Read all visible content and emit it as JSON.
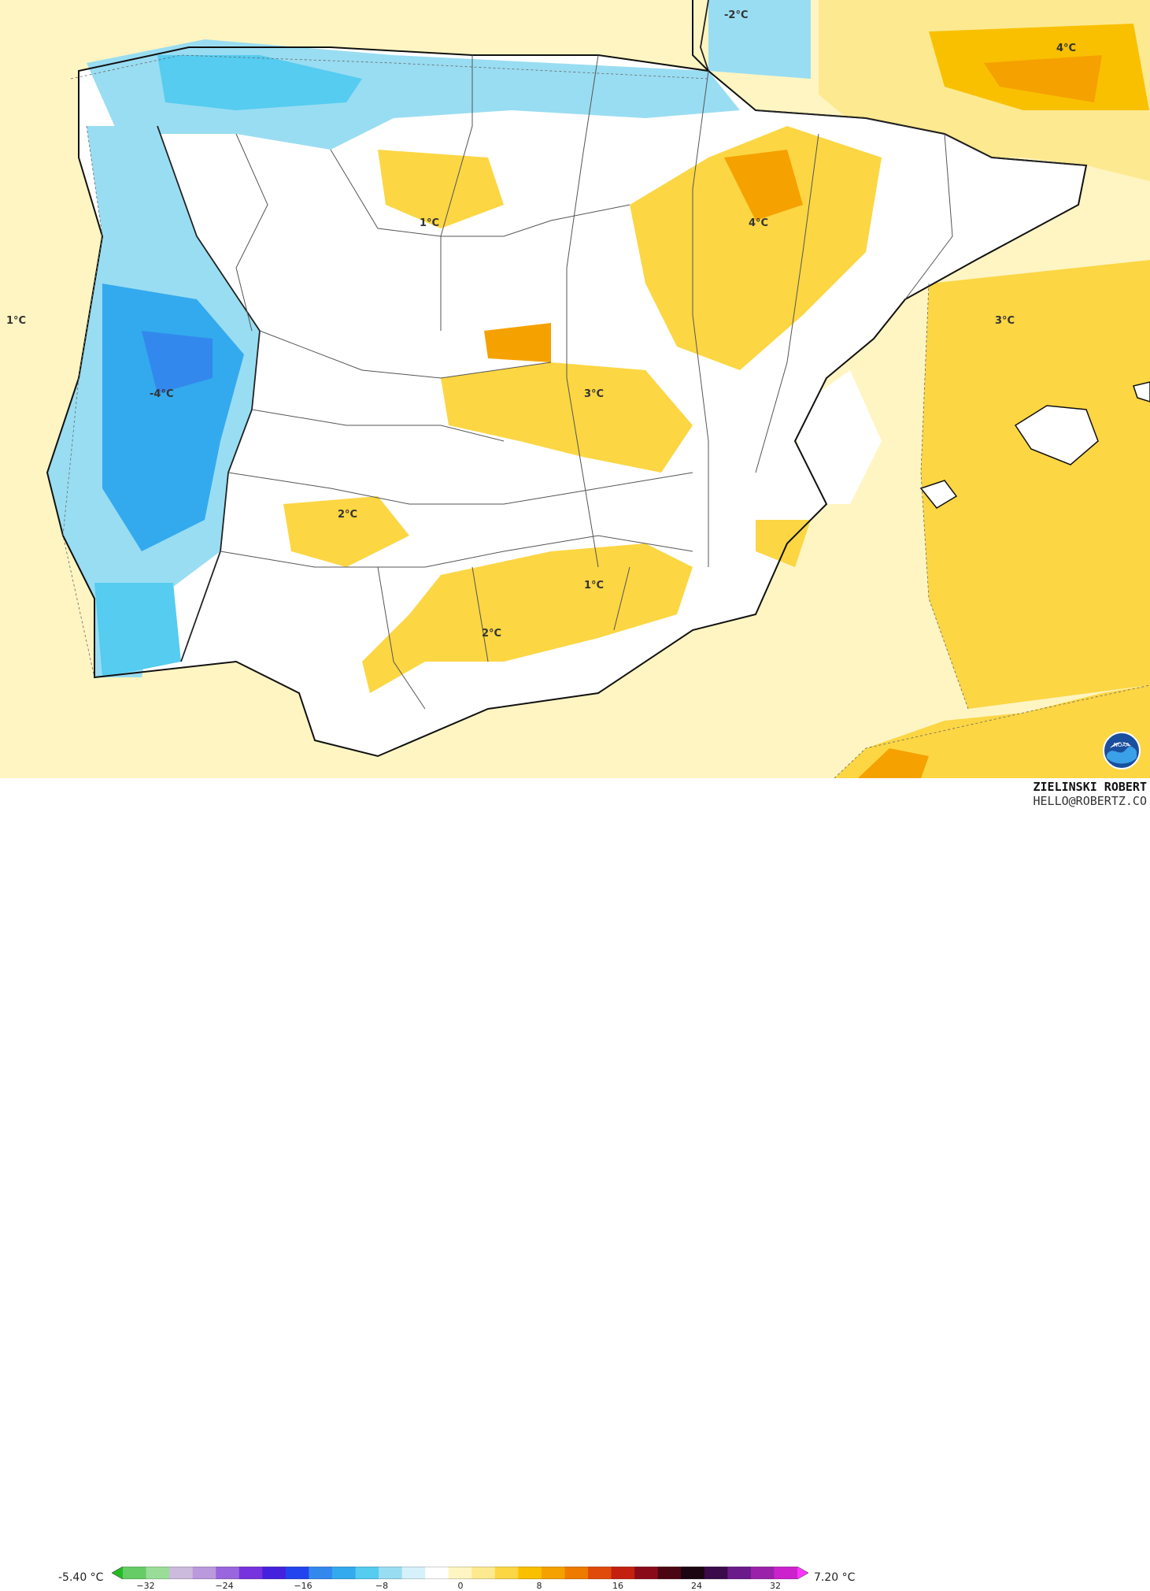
{
  "map": {
    "labels": [
      {
        "id": "lbl-minus2-north",
        "text": "-2°C"
      },
      {
        "id": "lbl-4-france",
        "text": "4°C"
      },
      {
        "id": "lbl-1-castilla",
        "text": "1°C"
      },
      {
        "id": "lbl-4-aragon",
        "text": "4°C"
      },
      {
        "id": "lbl-1-atlantic",
        "text": "1°C"
      },
      {
        "id": "lbl-3-mediterranean",
        "text": "3°C"
      },
      {
        "id": "lbl-minus4-portugal",
        "text": "-4°C"
      },
      {
        "id": "lbl-3-center",
        "text": "3°C"
      },
      {
        "id": "lbl-2-extremadura",
        "text": "2°C"
      },
      {
        "id": "lbl-1-andalusia",
        "text": "1°C"
      },
      {
        "id": "lbl-2-south",
        "text": "2°C"
      }
    ]
  },
  "legend": {
    "min_label": "-5.40 °C",
    "max_label": "7.20 °C",
    "ticks": [
      "−32",
      "−24",
      "−16",
      "−8",
      "0",
      "8",
      "16",
      "24",
      "32"
    ],
    "colors": [
      "#22bb22",
      "#66cc66",
      "#99dd99",
      "#ccbbdd",
      "#bb99dd",
      "#9966dd",
      "#7733dd",
      "#4422dd",
      "#2244ee",
      "#3388ee",
      "#33aaee",
      "#55ccf0",
      "#99ddf2",
      "#d6f1fa",
      "#ffffff",
      "#fef5c2",
      "#fde98f",
      "#fcd643",
      "#f9c000",
      "#f5a100",
      "#ee7a00",
      "#e04a0a",
      "#c42010",
      "#8b0a1a",
      "#4a0612",
      "#1a0510",
      "#3a0a4a",
      "#6a1a8a",
      "#9a22aa",
      "#cc22cc",
      "#ff33ff"
    ]
  },
  "credit": {
    "name": "ZIELINSKI ROBERT",
    "email": "HELLO@ROBERTZ.CO",
    "logo": "noaa-logo"
  }
}
